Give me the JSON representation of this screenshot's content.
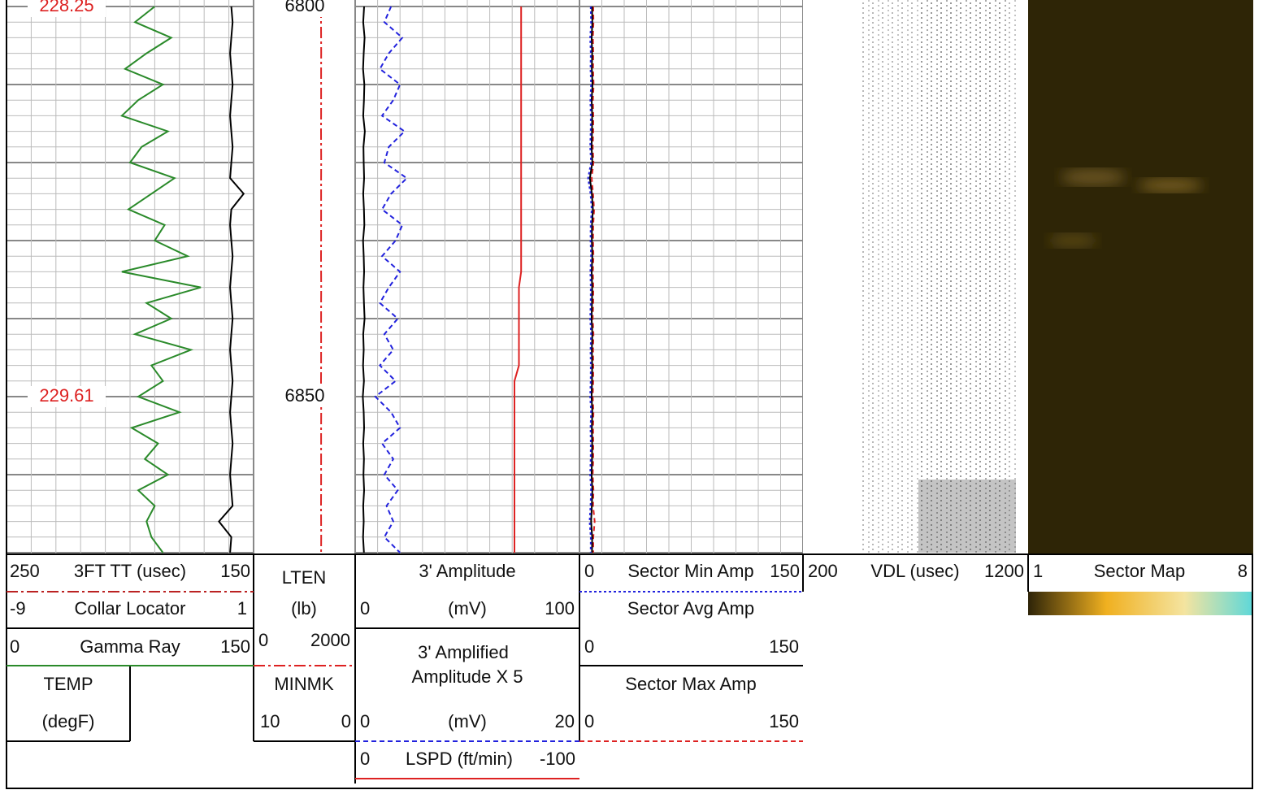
{
  "depth_labels": [
    6800,
    6850
  ],
  "temp_labels": [
    "228.25",
    "229.61"
  ],
  "headers": {
    "track1": {
      "tt": {
        "left": "250",
        "name": "3FT TT (usec)",
        "right": "150"
      },
      "ccl": {
        "left": "-9",
        "name": "Collar Locator",
        "right": "1"
      },
      "gr": {
        "left": "0",
        "name": "Gamma Ray",
        "right": "150"
      },
      "temp": {
        "name": "TEMP",
        "unit": "(degF)"
      }
    },
    "depth": {
      "lten": {
        "name": "LTEN",
        "unit": "(lb)",
        "left": "0",
        "right": "2000"
      },
      "minmk": {
        "name": "MINMK",
        "left": "10",
        "right": "0"
      }
    },
    "track3": {
      "amp": {
        "name": "3' Amplitude",
        "left": "0",
        "unit": "(mV)",
        "right": "100"
      },
      "amp5": {
        "name1": "3' Amplified",
        "name2": "Amplitude X 5",
        "left": "0",
        "unit": "(mV)",
        "right": "20"
      },
      "lspd": {
        "left": "0",
        "name": "LSPD (ft/min)",
        "right": "-100"
      }
    },
    "track4": {
      "min": {
        "left": "0",
        "name": "Sector Min Amp",
        "right": "150"
      },
      "avg": {
        "name": "Sector Avg Amp",
        "left": "0",
        "right": "150"
      },
      "max": {
        "name": "Sector Max Amp",
        "left": "0",
        "right": "150"
      }
    },
    "vdl": {
      "left": "200",
      "name": "VDL (usec)",
      "right": "1200"
    },
    "map": {
      "left": "1",
      "name": "Sector Map",
      "right": "8"
    }
  },
  "curves": {
    "depth": [
      6800,
      6802,
      6804,
      6806,
      6808,
      6810,
      6812,
      6814,
      6816,
      6818,
      6820,
      6822,
      6824,
      6826,
      6828,
      6830,
      6832,
      6834,
      6836,
      6838,
      6840,
      6842,
      6844,
      6846,
      6848,
      6850,
      6852,
      6854,
      6856,
      6858,
      6860,
      6862,
      6864,
      6866,
      6868,
      6870
    ],
    "gamma_ray": [
      90,
      78,
      100,
      85,
      72,
      95,
      80,
      70,
      98,
      82,
      75,
      102,
      88,
      74,
      96,
      90,
      110,
      70,
      118,
      85,
      100,
      78,
      112,
      88,
      95,
      80,
      105,
      76,
      92,
      84,
      98,
      80,
      90,
      85,
      88,
      95
    ],
    "collar_locator": [
      0.1,
      0.15,
      0.1,
      0.05,
      0.1,
      0.15,
      0.1,
      0.05,
      0.1,
      0.15,
      0.1,
      0.05,
      0.6,
      0.1,
      0.05,
      0.1,
      0.15,
      0.1,
      0.05,
      0.1,
      0.15,
      0.1,
      0.05,
      0.1,
      0.15,
      0.1,
      0.05,
      0.1,
      0.15,
      0.1,
      0.05,
      0.1,
      0.15,
      -0.4,
      0.1,
      0.05
    ],
    "lten": [
      1330,
      1328,
      1330,
      1331,
      1330,
      1329,
      1330,
      1330,
      1328,
      1330,
      1331,
      1330,
      1330,
      1329,
      1330,
      1330,
      1328,
      1330,
      1331,
      1330,
      1330,
      1329,
      1330,
      1330,
      1328,
      1330,
      1331,
      1330,
      1330,
      1329,
      1330,
      1330,
      1328,
      1330,
      1331,
      1330
    ],
    "amplitude": [
      4.0,
      3.6,
      4.2,
      3.8,
      3.5,
      4.1,
      3.9,
      3.6,
      4.3,
      3.7,
      3.8,
      4.0,
      3.6,
      3.9,
      4.1,
      3.5,
      3.8,
      4.0,
      3.7,
      3.9,
      4.2,
      3.6,
      3.8,
      3.5,
      3.9,
      3.4,
      3.8,
      4.0,
      3.6,
      3.9,
      3.7,
      4.0,
      3.6,
      3.8,
      3.5,
      3.9
    ],
    "amplified": [
      3.2,
      2.6,
      4.2,
      3.0,
      2.2,
      4.0,
      3.4,
      2.4,
      4.4,
      3.0,
      2.6,
      4.6,
      3.2,
      2.4,
      4.2,
      3.6,
      2.4,
      4.0,
      3.0,
      2.2,
      3.8,
      2.6,
      3.4,
      2.2,
      3.6,
      1.8,
      3.2,
      4.0,
      2.4,
      3.4,
      2.6,
      3.8,
      2.8,
      3.4,
      2.6,
      4.0
    ],
    "lspd": [
      -74,
      -74,
      -74,
      -74,
      -74,
      -74,
      -74,
      -74,
      -74,
      -74,
      -74,
      -74,
      -74,
      -74,
      -74,
      -74,
      -74,
      -74,
      -73,
      -73,
      -73,
      -73,
      -73,
      -73,
      -71,
      -71,
      -71,
      -71,
      -71,
      -71,
      -71,
      -71,
      -71,
      -71,
      -71,
      -71
    ],
    "sector_min": [
      7.5,
      7.8,
      7.2,
      7.6,
      7.4,
      7.8,
      7.3,
      7.6,
      7.5,
      7.2,
      7.8,
      5.8,
      7.4,
      8.2,
      7.5,
      7.4,
      7.8,
      7.3,
      7.6,
      7.5,
      7.2,
      7.8,
      7.4,
      7.6,
      7.5,
      7.2,
      7.8,
      7.4,
      7.6,
      7.5,
      7.2,
      7.8,
      7.4,
      6.8,
      7.6,
      7.5
    ],
    "sector_avg": [
      8.4,
      8.6,
      8.2,
      8.5,
      8.3,
      8.7,
      8.2,
      8.5,
      8.4,
      8.1,
      8.6,
      7.0,
      8.3,
      9.0,
      8.4,
      8.3,
      8.6,
      8.2,
      8.5,
      8.4,
      8.1,
      8.6,
      8.3,
      8.5,
      8.4,
      8.1,
      8.6,
      8.3,
      8.5,
      8.4,
      8.1,
      8.6,
      8.3,
      7.8,
      8.5,
      8.4
    ],
    "sector_max": [
      9.2,
      9.4,
      9.0,
      9.3,
      9.1,
      9.5,
      9.0,
      9.3,
      9.2,
      8.9,
      9.4,
      8.2,
      9.1,
      9.8,
      9.2,
      9.1,
      9.4,
      9.0,
      9.3,
      9.2,
      8.9,
      9.4,
      9.1,
      9.3,
      9.2,
      8.9,
      9.4,
      9.1,
      9.3,
      9.2,
      8.9,
      9.4,
      9.1,
      10.2,
      9.3,
      9.2
    ]
  }
}
